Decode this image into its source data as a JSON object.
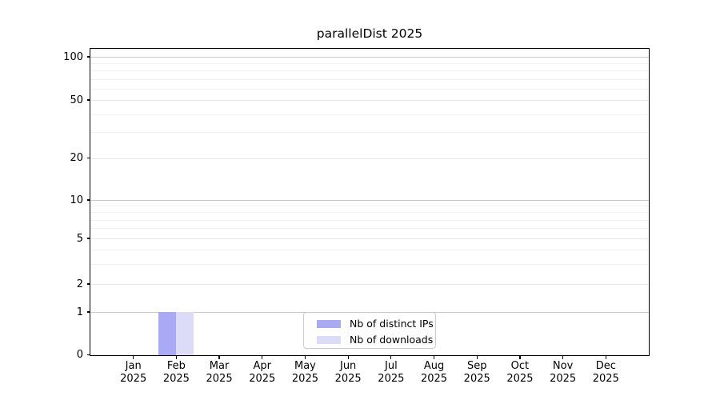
{
  "chart_data": {
    "type": "bar",
    "title": "parallelDist 2025",
    "categories": [
      "Jan",
      "Feb",
      "Mar",
      "Apr",
      "May",
      "Jun",
      "Jul",
      "Aug",
      "Sep",
      "Oct",
      "Nov",
      "Dec"
    ],
    "year_label": "2025",
    "series": [
      {
        "name": "Nb of distinct IPs",
        "color": "#a9a9f5",
        "values": [
          0,
          1,
          0,
          0,
          0,
          0,
          0,
          0,
          0,
          0,
          0,
          0
        ]
      },
      {
        "name": "Nb of downloads",
        "color": "#dcdcf9",
        "values": [
          0,
          1,
          0,
          0,
          0,
          0,
          0,
          0,
          0,
          0,
          0,
          0
        ]
      }
    ],
    "y_ticks": [
      0,
      1,
      2,
      5,
      10,
      20,
      50,
      100
    ],
    "minor_gridlines": [
      3,
      4,
      6,
      7,
      8,
      9,
      30,
      40,
      60,
      70,
      80,
      90
    ],
    "ylim": [
      0,
      114
    ],
    "yscale": "log-like (0,1,2,5,10,20,50,100)",
    "xlabel": "",
    "ylabel": "",
    "grid": "horizontal",
    "legend_position": "lower-center inside plot"
  }
}
